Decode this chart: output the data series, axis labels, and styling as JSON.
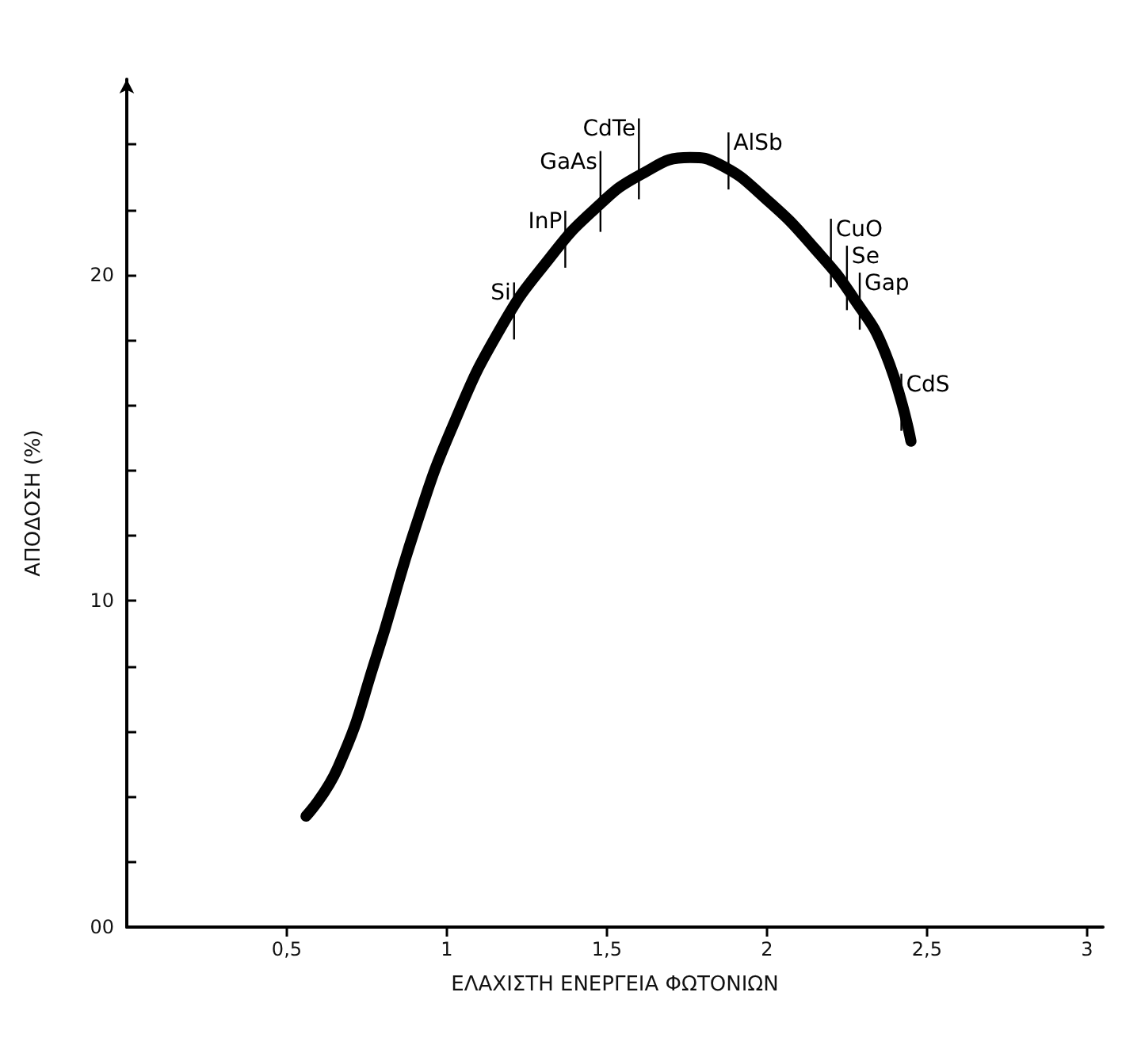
{
  "chart_data": {
    "type": "line",
    "xlabel": "ΕΛΑΧΙΣΤΗ ΕΝΕΡΓΕΙΑ ΦΩΤΟΝΙΩΝ",
    "ylabel": "ΑΠΟΔΟΣΗ (%)",
    "xlim": [
      0,
      3.05
    ],
    "ylim": [
      0,
      26
    ],
    "xticks": [
      {
        "value": 0.5,
        "label": "0,5"
      },
      1,
      {
        "value": 1.5,
        "label": "1,5"
      },
      2,
      {
        "value": 2.5,
        "label": "2,5"
      },
      3
    ],
    "yticks": [
      {
        "value": 0,
        "label": "00"
      },
      {
        "value": 2,
        "label": null
      },
      {
        "value": 4,
        "label": null
      },
      {
        "value": 6,
        "label": null
      },
      {
        "value": 8,
        "label": null
      },
      10,
      {
        "value": 12,
        "label": null
      },
      {
        "value": 14,
        "label": null
      },
      {
        "value": 16,
        "label": null
      },
      {
        "value": 18,
        "label": null
      },
      20,
      {
        "value": 22,
        "label": null
      },
      {
        "value": 24,
        "label": null
      }
    ],
    "grid": false,
    "marker": "none",
    "line_style": "solid",
    "series": [
      {
        "color": "#000000",
        "x": [
          0.56,
          0.66,
          0.78,
          0.9,
          1.02,
          1.17,
          1.32,
          1.46,
          1.61,
          1.76,
          1.85,
          2.0,
          2.15,
          2.27,
          2.37,
          2.45
        ],
        "values": [
          3.4,
          4.9,
          8.3,
          12.2,
          15.4,
          18.4,
          20.5,
          22.0,
          23.1,
          23.6,
          23.4,
          22.3,
          20.8,
          19.3,
          17.6,
          14.9
        ]
      }
    ],
    "annotations": [
      {
        "text": "Si",
        "x": 1.21,
        "y": 18.7
      },
      {
        "text": "InP",
        "x": 1.37,
        "y": 20.9
      },
      {
        "text": "GaAs",
        "x": 1.48,
        "y": 22.0
      },
      {
        "text": "CdTe",
        "x": 1.6,
        "y": 23.0
      },
      {
        "text": "AlSb",
        "x": 1.88,
        "y": 23.3
      },
      {
        "text": "CuO",
        "x": 2.2,
        "y": 20.3
      },
      {
        "text": "Se",
        "x": 2.25,
        "y": 19.6
      },
      {
        "text": "Gap",
        "x": 2.29,
        "y": 19.0
      },
      {
        "text": "CdS",
        "x": 2.42,
        "y": 15.9
      }
    ]
  }
}
